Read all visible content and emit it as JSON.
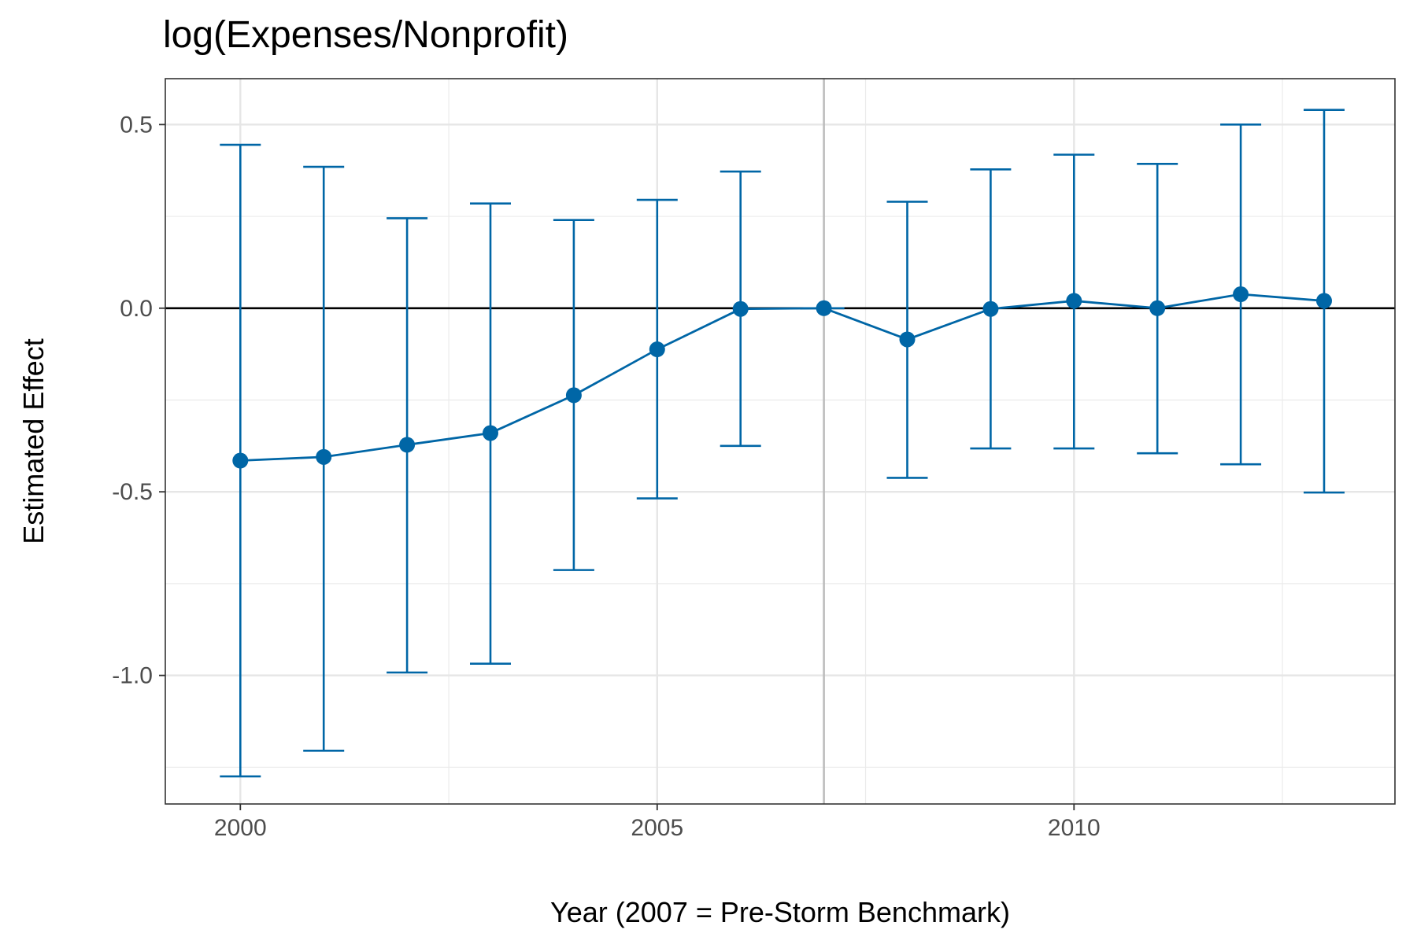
{
  "chart_data": {
    "type": "scatter",
    "title": "log(Expenses/Nonprofit)",
    "xlabel": "Year (2007 = Pre-Storm Benchmark)",
    "ylabel": "Estimated Effect",
    "xlim": [
      1999.1,
      2013.85
    ],
    "ylim": [
      -1.35,
      0.625
    ],
    "x_ticks": [
      2000,
      2005,
      2010
    ],
    "x_tick_labels": [
      "2000",
      "2005",
      "2010"
    ],
    "y_ticks": [
      0.5,
      0.0,
      -0.5,
      -1.0
    ],
    "y_tick_labels": [
      "0.5",
      "0.0",
      "-0.5",
      "-1.0"
    ],
    "x_minor_ticks": [
      2002.5,
      2007.5,
      2012.5
    ],
    "y_minor_ticks": [
      0.25,
      -0.25,
      -0.75,
      -1.25
    ],
    "grid": true,
    "reference_hline": 0.0,
    "reference_vline": 2007,
    "series": [
      {
        "color": "#0066a6",
        "points": [
          {
            "x": 2000,
            "y": -0.415,
            "lower": -1.275,
            "upper": 0.445
          },
          {
            "x": 2001,
            "y": -0.405,
            "lower": -1.205,
            "upper": 0.385
          },
          {
            "x": 2002,
            "y": -0.372,
            "lower": -0.992,
            "upper": 0.245
          },
          {
            "x": 2003,
            "y": -0.34,
            "lower": -0.968,
            "upper": 0.285
          },
          {
            "x": 2004,
            "y": -0.237,
            "lower": -0.713,
            "upper": 0.24
          },
          {
            "x": 2005,
            "y": -0.112,
            "lower": -0.518,
            "upper": 0.295
          },
          {
            "x": 2006,
            "y": -0.002,
            "lower": -0.375,
            "upper": 0.372
          },
          {
            "x": 2007,
            "y": 0.0,
            "lower": 0.0,
            "upper": 0.0
          },
          {
            "x": 2008,
            "y": -0.085,
            "lower": -0.462,
            "upper": 0.29
          },
          {
            "x": 2009,
            "y": -0.002,
            "lower": -0.382,
            "upper": 0.378
          },
          {
            "x": 2010,
            "y": 0.02,
            "lower": -0.382,
            "upper": 0.418
          },
          {
            "x": 2011,
            "y": 0.0,
            "lower": -0.395,
            "upper": 0.393
          },
          {
            "x": 2012,
            "y": 0.038,
            "lower": -0.425,
            "upper": 0.5
          },
          {
            "x": 2013,
            "y": 0.02,
            "lower": -0.502,
            "upper": 0.54
          }
        ]
      }
    ]
  }
}
